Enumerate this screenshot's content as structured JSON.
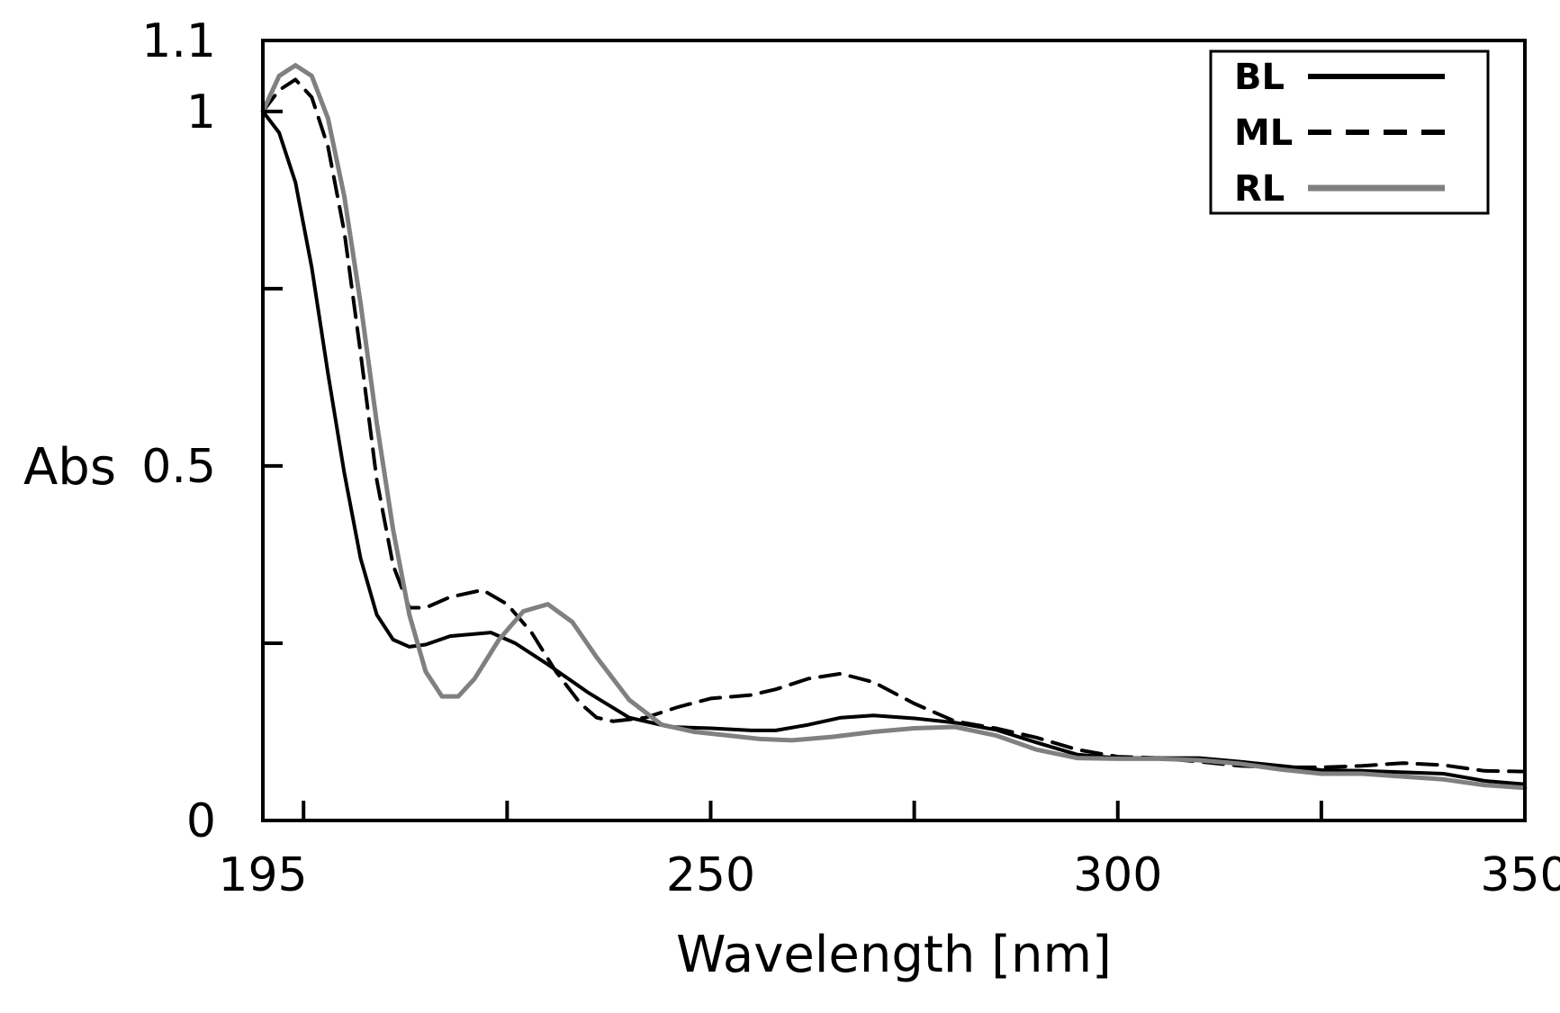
{
  "chart_data": {
    "type": "line",
    "title": "",
    "xlabel": "Wavelength [nm]",
    "ylabel": "Abs",
    "xlim": [
      195,
      350
    ],
    "ylim": [
      0,
      1.1
    ],
    "grid": false,
    "legend_position": "top-right",
    "x_ticks": [
      195,
      250,
      300,
      350
    ],
    "x_minor_ticks": [
      200,
      225,
      275,
      325
    ],
    "y_ticks": [
      0,
      0.5,
      1,
      1.1
    ],
    "y_tick_labels": [
      "0",
      "0.5",
      "1",
      "1.1"
    ],
    "y_minor_ticks": [
      0.25,
      0.75
    ],
    "series": [
      {
        "name": "BL",
        "color": "#000000",
        "dash": "solid",
        "points": [
          [
            195,
            1.0
          ],
          [
            197,
            0.97
          ],
          [
            199,
            0.9
          ],
          [
            201,
            0.78
          ],
          [
            203,
            0.63
          ],
          [
            205,
            0.49
          ],
          [
            207,
            0.37
          ],
          [
            209,
            0.29
          ],
          [
            211,
            0.255
          ],
          [
            213,
            0.245
          ],
          [
            215,
            0.248
          ],
          [
            218,
            0.26
          ],
          [
            223,
            0.265
          ],
          [
            226,
            0.25
          ],
          [
            230,
            0.22
          ],
          [
            235,
            0.18
          ],
          [
            240,
            0.145
          ],
          [
            245,
            0.132
          ],
          [
            250,
            0.13
          ],
          [
            255,
            0.127
          ],
          [
            258,
            0.127
          ],
          [
            262,
            0.135
          ],
          [
            266,
            0.145
          ],
          [
            270,
            0.148
          ],
          [
            275,
            0.144
          ],
          [
            280,
            0.138
          ],
          [
            285,
            0.128
          ],
          [
            290,
            0.11
          ],
          [
            295,
            0.093
          ],
          [
            300,
            0.088
          ],
          [
            305,
            0.088
          ],
          [
            310,
            0.088
          ],
          [
            315,
            0.083
          ],
          [
            320,
            0.077
          ],
          [
            325,
            0.071
          ],
          [
            330,
            0.07
          ],
          [
            335,
            0.068
          ],
          [
            340,
            0.066
          ],
          [
            345,
            0.056
          ],
          [
            350,
            0.051
          ]
        ]
      },
      {
        "name": "ML",
        "color": "#000000",
        "dash": "dashed",
        "points": [
          [
            195,
            1.0
          ],
          [
            197,
            1.03
          ],
          [
            199,
            1.045
          ],
          [
            201,
            1.02
          ],
          [
            203,
            0.95
          ],
          [
            205,
            0.83
          ],
          [
            207,
            0.66
          ],
          [
            209,
            0.48
          ],
          [
            211,
            0.36
          ],
          [
            213,
            0.3
          ],
          [
            215,
            0.3
          ],
          [
            218,
            0.315
          ],
          [
            222,
            0.325
          ],
          [
            225,
            0.305
          ],
          [
            228,
            0.265
          ],
          [
            231,
            0.21
          ],
          [
            234,
            0.165
          ],
          [
            236,
            0.145
          ],
          [
            238,
            0.14
          ],
          [
            242,
            0.145
          ],
          [
            246,
            0.16
          ],
          [
            250,
            0.172
          ],
          [
            255,
            0.177
          ],
          [
            258,
            0.185
          ],
          [
            262,
            0.2
          ],
          [
            266,
            0.207
          ],
          [
            270,
            0.195
          ],
          [
            275,
            0.165
          ],
          [
            280,
            0.14
          ],
          [
            285,
            0.13
          ],
          [
            290,
            0.117
          ],
          [
            295,
            0.1
          ],
          [
            300,
            0.09
          ],
          [
            305,
            0.088
          ],
          [
            310,
            0.083
          ],
          [
            315,
            0.077
          ],
          [
            320,
            0.075
          ],
          [
            325,
            0.075
          ],
          [
            330,
            0.077
          ],
          [
            335,
            0.081
          ],
          [
            340,
            0.078
          ],
          [
            345,
            0.07
          ],
          [
            350,
            0.069
          ]
        ]
      },
      {
        "name": "RL",
        "color": "#808080",
        "dash": "solid",
        "points": [
          [
            195,
            1.0
          ],
          [
            197,
            1.05
          ],
          [
            199,
            1.065
          ],
          [
            201,
            1.05
          ],
          [
            203,
            0.99
          ],
          [
            205,
            0.88
          ],
          [
            207,
            0.73
          ],
          [
            209,
            0.56
          ],
          [
            211,
            0.41
          ],
          [
            213,
            0.29
          ],
          [
            215,
            0.21
          ],
          [
            217,
            0.175
          ],
          [
            219,
            0.175
          ],
          [
            221,
            0.2
          ],
          [
            224,
            0.255
          ],
          [
            227,
            0.295
          ],
          [
            230,
            0.305
          ],
          [
            233,
            0.28
          ],
          [
            236,
            0.23
          ],
          [
            240,
            0.17
          ],
          [
            244,
            0.135
          ],
          [
            248,
            0.125
          ],
          [
            252,
            0.12
          ],
          [
            256,
            0.115
          ],
          [
            260,
            0.113
          ],
          [
            265,
            0.118
          ],
          [
            270,
            0.125
          ],
          [
            275,
            0.13
          ],
          [
            280,
            0.132
          ],
          [
            285,
            0.12
          ],
          [
            290,
            0.1
          ],
          [
            295,
            0.088
          ],
          [
            300,
            0.087
          ],
          [
            305,
            0.087
          ],
          [
            310,
            0.085
          ],
          [
            315,
            0.08
          ],
          [
            320,
            0.072
          ],
          [
            325,
            0.066
          ],
          [
            330,
            0.066
          ],
          [
            335,
            0.062
          ],
          [
            340,
            0.058
          ],
          [
            345,
            0.05
          ],
          [
            350,
            0.046
          ]
        ]
      }
    ]
  }
}
